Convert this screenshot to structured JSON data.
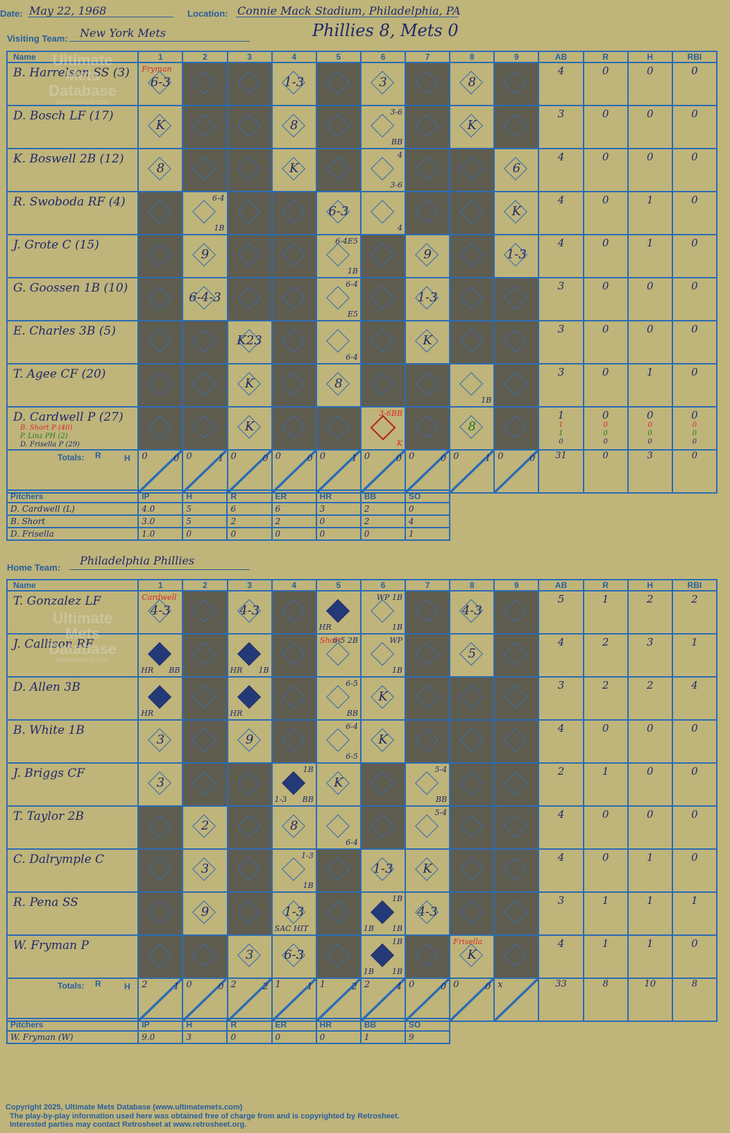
{
  "header": {
    "date_label": "Date:",
    "date": "May 22, 1968",
    "location_label": "Location:",
    "location": "Connie Mack Stadium, Philadelphia, PA",
    "visiting_label": "Visiting Team:",
    "visiting_team": "New York Mets",
    "result": "Phillies 8, Mets 0",
    "home_label": "Home Team:",
    "home_team": "Philadelphia Phillies"
  },
  "columns": {
    "name": "Name",
    "innings": [
      "1",
      "2",
      "3",
      "4",
      "5",
      "6",
      "7",
      "8",
      "9"
    ],
    "ab": "AB",
    "r": "R",
    "h": "H",
    "rbi": "RBI",
    "totals": "Totals:",
    "r_short": "R",
    "h_short": "H"
  },
  "watermark": {
    "line1": "Ultimate",
    "line2": "Mets",
    "line3": "Database",
    "url": "ultimatemets.com"
  },
  "visitors": {
    "players": [
      {
        "name": "B. Harrelson SS (3)",
        "ab": "4",
        "r": "0",
        "h": "0",
        "rbi": "0"
      },
      {
        "name": "D. Bosch LF (17)",
        "ab": "3",
        "r": "0",
        "h": "0",
        "rbi": "0"
      },
      {
        "name": "K. Boswell 2B (12)",
        "ab": "4",
        "r": "0",
        "h": "0",
        "rbi": "0"
      },
      {
        "name": "R. Swoboda RF (4)",
        "ab": "4",
        "r": "0",
        "h": "1",
        "rbi": "0"
      },
      {
        "name": "J. Grote C (15)",
        "ab": "4",
        "r": "0",
        "h": "1",
        "rbi": "0"
      },
      {
        "name": "G. Goossen 1B (10)",
        "ab": "3",
        "r": "0",
        "h": "0",
        "rbi": "0"
      },
      {
        "name": "E. Charles 3B (5)",
        "ab": "3",
        "r": "0",
        "h": "0",
        "rbi": "0"
      },
      {
        "name": "T. Agee CF (20)",
        "ab": "3",
        "r": "0",
        "h": "1",
        "rbi": "0"
      },
      {
        "name": "D. Cardwell P (27)",
        "ab": "1",
        "r": "0",
        "h": "0",
        "rbi": "0"
      }
    ],
    "subs": [
      {
        "name": "B. Short P (40)",
        "ab": "1",
        "r": "0",
        "h": "0",
        "rbi": "0"
      },
      {
        "name": "P. Linz PH (2)",
        "ab": "1",
        "r": "0",
        "h": "0",
        "rbi": "0"
      },
      {
        "name": "D. Frisella P (29)",
        "ab": "0",
        "r": "0",
        "h": "0",
        "rbi": "0"
      }
    ],
    "innings_totals": [
      [
        "0",
        "0"
      ],
      [
        "0",
        "1"
      ],
      [
        "0",
        "0"
      ],
      [
        "0",
        "0"
      ],
      [
        "0",
        "1"
      ],
      [
        "0",
        "0"
      ],
      [
        "0",
        "0"
      ],
      [
        "0",
        "1"
      ],
      [
        "0",
        "0"
      ]
    ],
    "totals": {
      "ab": "31",
      "r": "0",
      "h": "3",
      "rbi": "0"
    },
    "pitching_header": [
      "Pitchers",
      "IP",
      "H",
      "R",
      "ER",
      "HR",
      "BB",
      "SO"
    ],
    "pitchers": [
      [
        "D. Cardwell (L)",
        "4.0",
        "5",
        "6",
        "6",
        "3",
        "2",
        "0"
      ],
      [
        "B. Short",
        "3.0",
        "5",
        "2",
        "2",
        "0",
        "2",
        "4"
      ],
      [
        "D. Frisella",
        "1.0",
        "0",
        "0",
        "0",
        "0",
        "0",
        "1"
      ]
    ]
  },
  "home": {
    "players": [
      {
        "name": "T. Gonzalez LF",
        "ab": "5",
        "r": "1",
        "h": "2",
        "rbi": "2"
      },
      {
        "name": "J. Callison RF",
        "ab": "4",
        "r": "2",
        "h": "3",
        "rbi": "1"
      },
      {
        "name": "D. Allen 3B",
        "ab": "3",
        "r": "2",
        "h": "2",
        "rbi": "4"
      },
      {
        "name": "B. White 1B",
        "ab": "4",
        "r": "0",
        "h": "0",
        "rbi": "0"
      },
      {
        "name": "J. Briggs CF",
        "ab": "2",
        "r": "1",
        "h": "0",
        "rbi": "0"
      },
      {
        "name": "T. Taylor 2B",
        "ab": "4",
        "r": "0",
        "h": "0",
        "rbi": "0"
      },
      {
        "name": "C. Dalrymple C",
        "ab": "4",
        "r": "0",
        "h": "1",
        "rbi": "0"
      },
      {
        "name": "R. Pena SS",
        "ab": "3",
        "r": "1",
        "h": "1",
        "rbi": "1"
      },
      {
        "name": "W. Fryman P",
        "ab": "4",
        "r": "1",
        "h": "1",
        "rbi": "0"
      }
    ],
    "innings_totals": [
      [
        "2",
        "1"
      ],
      [
        "0",
        "0"
      ],
      [
        "2",
        "2"
      ],
      [
        "1",
        "1"
      ],
      [
        "1",
        "2"
      ],
      [
        "2",
        "4"
      ],
      [
        "0",
        "0"
      ],
      [
        "0",
        "0"
      ],
      [
        "x",
        ""
      ]
    ],
    "totals": {
      "ab": "33",
      "r": "8",
      "h": "10",
      "rbi": "8"
    },
    "pitching_header": [
      "Pitchers",
      "IP",
      "H",
      "R",
      "ER",
      "HR",
      "BB",
      "SO"
    ],
    "pitchers": [
      [
        "W. Fryman (W)",
        "9.0",
        "3",
        "0",
        "0",
        "0",
        "1",
        "9"
      ]
    ]
  },
  "visitor_plays": [
    [
      {
        "res": "6-3",
        "note": "Fryman"
      },
      null,
      null,
      {
        "res": "1-3"
      },
      null,
      {
        "res": "3"
      },
      null,
      {
        "res": "8"
      },
      null
    ],
    [
      {
        "res": "K"
      },
      null,
      null,
      {
        "res": "8"
      },
      null,
      {
        "tr": "3-6",
        "br": "BB"
      },
      null,
      {
        "res": "K"
      },
      null
    ],
    [
      {
        "res": "8"
      },
      null,
      null,
      {
        "res": "K"
      },
      null,
      {
        "tr": "4",
        "br": "3-6"
      },
      null,
      null,
      {
        "res": "6"
      }
    ],
    [
      null,
      {
        "tr": "6-4",
        "br": "1B"
      },
      null,
      null,
      {
        "res": "6-3"
      },
      {
        "br": "4"
      },
      null,
      null,
      {
        "res": "K"
      }
    ],
    [
      null,
      {
        "res": "9"
      },
      null,
      null,
      {
        "tr": "6-4E5",
        "br": "1B"
      },
      null,
      {
        "res": "9"
      },
      null,
      {
        "res": "1-3"
      }
    ],
    [
      null,
      {
        "res": "6-4-3"
      },
      null,
      null,
      {
        "tr": "6-4",
        "br": "E5"
      },
      null,
      {
        "res": "1-3"
      },
      null,
      null
    ],
    [
      null,
      null,
      {
        "res": "K23"
      },
      null,
      {
        "br": "6-4"
      },
      null,
      {
        "res": "K"
      },
      null,
      null
    ],
    [
      null,
      null,
      {
        "res": "K"
      },
      null,
      {
        "res": "8"
      },
      null,
      null,
      {
        "br": "1B"
      },
      null
    ],
    [
      null,
      null,
      {
        "res": "K"
      },
      null,
      null,
      {
        "tr": "3-6BB",
        "br": "K"
      },
      null,
      {
        "res": "8"
      },
      null
    ]
  ],
  "home_plays": [
    [
      {
        "res": "4-3",
        "note": "Cardwell"
      },
      null,
      {
        "res": "4-3"
      },
      null,
      {
        "run": true,
        "bl": "HR"
      },
      {
        "tr": "WP 1B",
        "br": "1B"
      },
      null,
      {
        "res": "4-3"
      },
      null
    ],
    [
      {
        "run": true,
        "bl": "HR",
        "br": "BB"
      },
      null,
      {
        "run": true,
        "bl": "HR",
        "br": "1B"
      },
      null,
      {
        "tr": "6-5 2B",
        "note": "Short"
      },
      {
        "tr": "WP",
        "br": "1B"
      },
      null,
      {
        "res": "5"
      },
      null
    ],
    [
      {
        "run": true,
        "bl": "HR"
      },
      null,
      {
        "run": true,
        "bl": "HR"
      },
      null,
      {
        "tr": "6-5",
        "br": "BB"
      },
      {
        "res": "K"
      },
      null,
      null,
      null
    ],
    [
      {
        "res": "3"
      },
      null,
      {
        "res": "9"
      },
      null,
      {
        "tr": "6-4",
        "br": "6-5"
      },
      {
        "res": "K"
      },
      null,
      null,
      null
    ],
    [
      {
        "res": "3"
      },
      null,
      null,
      {
        "run": true,
        "tr": "1B",
        "bl": "1-3",
        "br": "BB"
      },
      {
        "res": "K"
      },
      null,
      {
        "tr": "5-4",
        "br": "BB"
      },
      null,
      null
    ],
    [
      null,
      {
        "res": "2"
      },
      null,
      {
        "res": "8"
      },
      {
        "br": "6-4"
      },
      null,
      {
        "tr": "5-4"
      },
      null,
      null
    ],
    [
      null,
      {
        "res": "3"
      },
      null,
      {
        "tr": "1-3",
        "br": "1B"
      },
      null,
      {
        "res": "1-3"
      },
      {
        "res": "K"
      },
      null,
      null
    ],
    [
      null,
      {
        "res": "9"
      },
      null,
      {
        "res": "1-3",
        "bl": "SAC HIT"
      },
      null,
      {
        "run": true,
        "tr": "1B",
        "bl": "1B",
        "br": "1B"
      },
      {
        "res": "4-3"
      },
      null,
      null
    ],
    [
      null,
      null,
      {
        "res": "3"
      },
      {
        "res": "6-3"
      },
      null,
      {
        "run": true,
        "tr": "1B",
        "bl": "1B",
        "br": "1B"
      },
      null,
      {
        "res": "K",
        "note": "Frisella"
      },
      null
    ]
  ],
  "footer": {
    "line1": "Copyright 2025, Ultimate Mets Database (www.ultimatemets.com)",
    "line2": "The play-by-play information used here was obtained free of charge from and is copyrighted by Retrosheet.",
    "line3": "Interested parties may contact Retrosheet at www.retrosheet.org."
  }
}
